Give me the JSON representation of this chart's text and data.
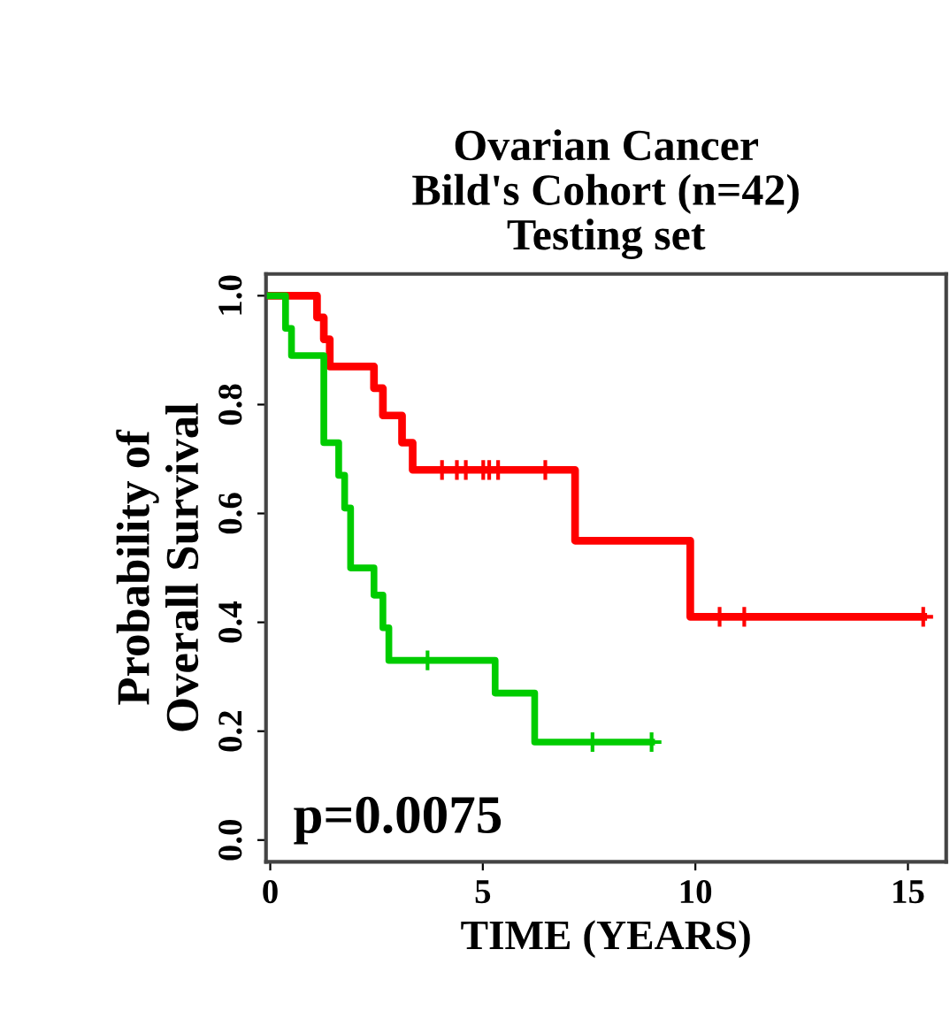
{
  "chart_data": {
    "type": "step",
    "title": "Ovarian Cancer\nBild's Cohort (n=42)\nTesting set",
    "xlabel": "TIME (YEARS)",
    "ylabel": "Probability of\nOverall Survival",
    "xlim": [
      -0.1,
      15.9
    ],
    "ylim": [
      -0.04,
      1.04
    ],
    "xticks": [
      0,
      5,
      10,
      15
    ],
    "yticks": [
      {
        "value": 0,
        "label": "0.0"
      },
      {
        "value": 0.2,
        "label": "0.2"
      },
      {
        "value": 0.4,
        "label": "0.4"
      },
      {
        "value": 0.6,
        "label": "0.6"
      },
      {
        "value": 0.8,
        "label": "0.8"
      },
      {
        "value": 1,
        "label": "1.0"
      }
    ],
    "grid": false,
    "legend": false,
    "annotations": [
      "p=0.0075"
    ],
    "series": [
      {
        "color": "#ff0000",
        "x": [
          0,
          1.1,
          1.26,
          1.4,
          2.44,
          2.65,
          3.1,
          3.35,
          7.17,
          9.88,
          15.36
        ],
        "values": [
          1.0,
          0.96,
          0.92,
          0.87,
          0.83,
          0.78,
          0.73,
          0.68,
          0.55,
          0.41,
          0.41
        ]
      },
      {
        "color": "#00cc00",
        "x": [
          0,
          0.36,
          0.5,
          1.26,
          1.61,
          1.75,
          1.89,
          2.44,
          2.65,
          2.79,
          5.29,
          6.22,
          8.97
        ],
        "values": [
          1.0,
          0.94,
          0.89,
          0.73,
          0.67,
          0.61,
          0.5,
          0.45,
          0.39,
          0.33,
          0.27,
          0.18,
          0.18
        ]
      },
      {
        "type": "scatter",
        "marker": "cross",
        "color": "#ff0000",
        "x": [
          4.04,
          4.39,
          4.6,
          5.01,
          5.15,
          5.36,
          6.47,
          10.57,
          11.15,
          15.36
        ],
        "values": [
          0.68,
          0.68,
          0.68,
          0.68,
          0.68,
          0.68,
          0.68,
          0.41,
          0.41,
          0.41
        ]
      },
      {
        "type": "scatter",
        "marker": "cross",
        "color": "#00cc00",
        "x": [
          3.7,
          7.58,
          8.97
        ],
        "values": [
          0.33,
          0.18,
          0.18
        ]
      }
    ]
  }
}
